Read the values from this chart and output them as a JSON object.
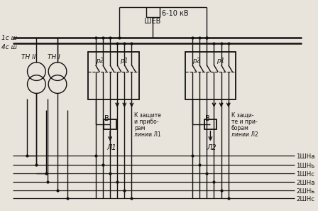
{
  "bg": "#e8e4dc",
  "lc": "#111111",
  "fig_w": 4.48,
  "fig_h": 2.97,
  "dpi": 100,
  "labels": {
    "bus1": "1с ш",
    "bus2": "4с ш",
    "tn2": "ТН II",
    "tn1": "ТН I",
    "shev": "ШЕВ",
    "voltage": "6-10 кВ",
    "b": "В",
    "l1": "Л1",
    "l2": "Л2",
    "r2": "р2",
    "r1": "р1",
    "k_l": [
      "К защите",
      "и прибо-",
      "рам",
      "линии Л1"
    ],
    "k_r": [
      "К защи-",
      "те и при-",
      "борам",
      "линии Л2"
    ],
    "shn": [
      "1ШНа",
      "1ШНь",
      "1ШНс",
      "2ШНа",
      "2ШНь",
      "2ШНс"
    ]
  }
}
